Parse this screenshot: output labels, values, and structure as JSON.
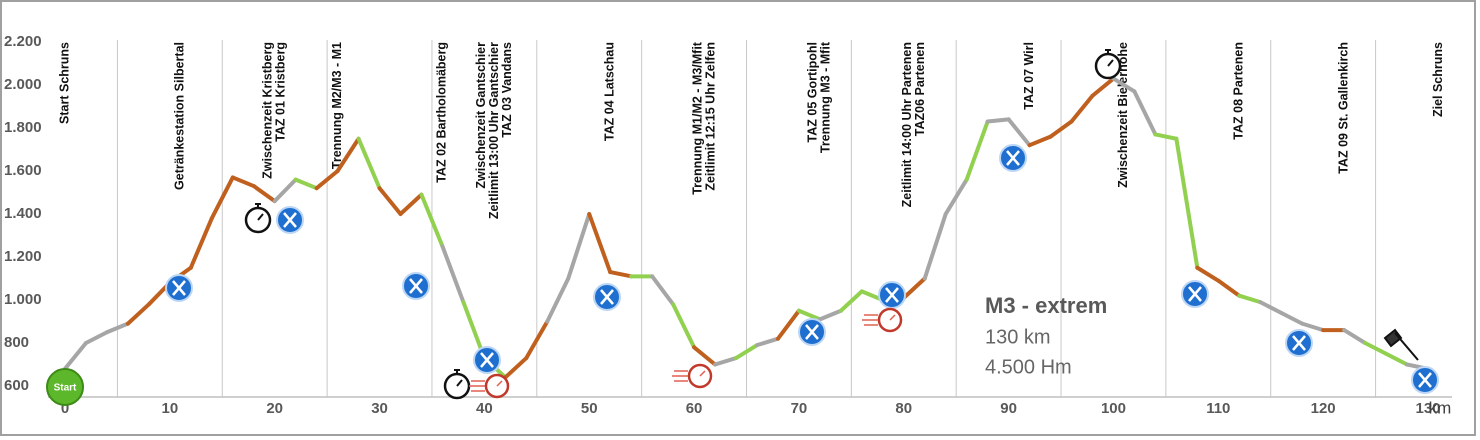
{
  "chart_data": {
    "type": "elevation-profile",
    "x": [
      0,
      2,
      4,
      6,
      8,
      10,
      12,
      14,
      16,
      18,
      20,
      22,
      24,
      26,
      28,
      30,
      32,
      34,
      36,
      38,
      40,
      42,
      44,
      46,
      48,
      50,
      52,
      54,
      56,
      58,
      60,
      62,
      64,
      66,
      68,
      70,
      72,
      74,
      76,
      78,
      80,
      82,
      84,
      86,
      88,
      90,
      92,
      94,
      96,
      98,
      100,
      102,
      104,
      106,
      108,
      110,
      112,
      114,
      116,
      118,
      120,
      122,
      124,
      126,
      128,
      130
    ],
    "values": [
      680,
      800,
      850,
      890,
      980,
      1080,
      1150,
      1380,
      1570,
      1530,
      1460,
      1560,
      1520,
      1600,
      1750,
      1520,
      1400,
      1490,
      1250,
      990,
      730,
      640,
      730,
      900,
      1100,
      1400,
      1130,
      1110,
      1110,
      980,
      780,
      700,
      730,
      790,
      820,
      950,
      910,
      950,
      1040,
      1000,
      1010,
      1100,
      1400,
      1560,
      1830,
      1840,
      1720,
      1760,
      1830,
      1950,
      2030,
      1970,
      1770,
      1750,
      1150,
      1090,
      1020,
      990,
      940,
      890,
      860,
      860,
      800,
      750,
      700,
      680
    ],
    "segment_colors": [
      "#a6a6a6",
      "#a6a6a6",
      "#a6a6a6",
      "#c0601f",
      "#c0601f",
      "#c0601f",
      "#c0601f",
      "#c0601f",
      "#c0601f",
      "#c0601f",
      "#a6a6a6",
      "#92d050",
      "#c0601f",
      "#c0601f",
      "#92d050",
      "#c0601f",
      "#c0601f",
      "#92d050",
      "#a6a6a6",
      "#92d050",
      "#92d050",
      "#c0601f",
      "#c0601f",
      "#a6a6a6",
      "#a6a6a6",
      "#c0601f",
      "#c0601f",
      "#92d050",
      "#a6a6a6",
      "#92d050",
      "#c0601f",
      "#a6a6a6",
      "#92d050",
      "#a6a6a6",
      "#c0601f",
      "#92d050",
      "#a6a6a6",
      "#92d050",
      "#92d050",
      "#a6a6a6",
      "#c0601f",
      "#a6a6a6",
      "#a6a6a6",
      "#92d050",
      "#a6a6a6",
      "#a6a6a6",
      "#c0601f",
      "#c0601f",
      "#c0601f",
      "#c0601f",
      "#a6a6a6",
      "#a6a6a6",
      "#92d050",
      "#92d050",
      "#c0601f",
      "#c0601f",
      "#92d050",
      "#a6a6a6",
      "#a6a6a6",
      "#a6a6a6",
      "#c0601f",
      "#a6a6a6",
      "#92d050",
      "#92d050",
      "#a6a6a6"
    ],
    "xlim": [
      0,
      130
    ],
    "ylim": [
      600,
      2200
    ],
    "xticks": [
      0,
      10,
      20,
      30,
      40,
      50,
      60,
      70,
      80,
      90,
      100,
      110,
      120,
      130
    ],
    "yticks": [
      600,
      800,
      {
        "value": 1000,
        "label": "1.000"
      },
      {
        "value": 1200,
        "label": "1.200"
      },
      {
        "value": 1400,
        "label": "1.400"
      },
      {
        "value": 1600,
        "label": "1.600"
      },
      {
        "value": 1800,
        "label": "1.800"
      },
      {
        "value": 2000,
        "label": "2.000"
      },
      {
        "value": 2200,
        "label": "2.200"
      }
    ],
    "x_unit": "km",
    "grid": true,
    "start_label": "Start",
    "info": {
      "title": "M3 - extrem",
      "distance": "130 km",
      "climb": "4.500 Hm"
    },
    "waypoints": [
      {
        "x": 0,
        "lines": [
          "Start Schruns"
        ]
      },
      {
        "x": 11,
        "lines": [
          "Getränkestation Silbertal"
        ]
      },
      {
        "x": 20,
        "lines": [
          "Zwischenzeit Kristberg",
          "TAZ 01 Kristberg"
        ]
      },
      {
        "x": 26,
        "lines": [
          "Trennung M2/M3 - M1"
        ]
      },
      {
        "x": 36,
        "lines": [
          "TAZ 02 Bartholomäberg"
        ]
      },
      {
        "x": 41,
        "lines": [
          "Zwischenzeit Gantschier",
          "Zeitlimit 13:00 Uhr Gantschier",
          "TAZ 03 Vandans"
        ]
      },
      {
        "x": 52,
        "lines": [
          "TAZ 04 Latschau"
        ]
      },
      {
        "x": 61,
        "lines": [
          "Trennung M1/M2 - M3/Mfit",
          "Zeitlimit 12:15 Uhr Zelfen"
        ]
      },
      {
        "x": 72,
        "lines": [
          "TAZ 05 Gortipohl",
          "Trennung M3 - Mfit"
        ]
      },
      {
        "x": 81,
        "lines": [
          "Zeitlimit 14:00 Uhr Partenen",
          "TAZ06 Partenen"
        ]
      },
      {
        "x": 92,
        "lines": [
          "TAZ 07 Wirl"
        ]
      },
      {
        "x": 101,
        "lines": [
          "Zwischenzeit Bielerhöhe"
        ]
      },
      {
        "x": 112,
        "lines": [
          "TAZ 08 Partenen"
        ]
      },
      {
        "x": 122,
        "lines": [
          "TAZ 09 St. Gallenkirch"
        ]
      },
      {
        "x": 131,
        "lines": [
          "Ziel Schruns"
        ]
      }
    ]
  }
}
